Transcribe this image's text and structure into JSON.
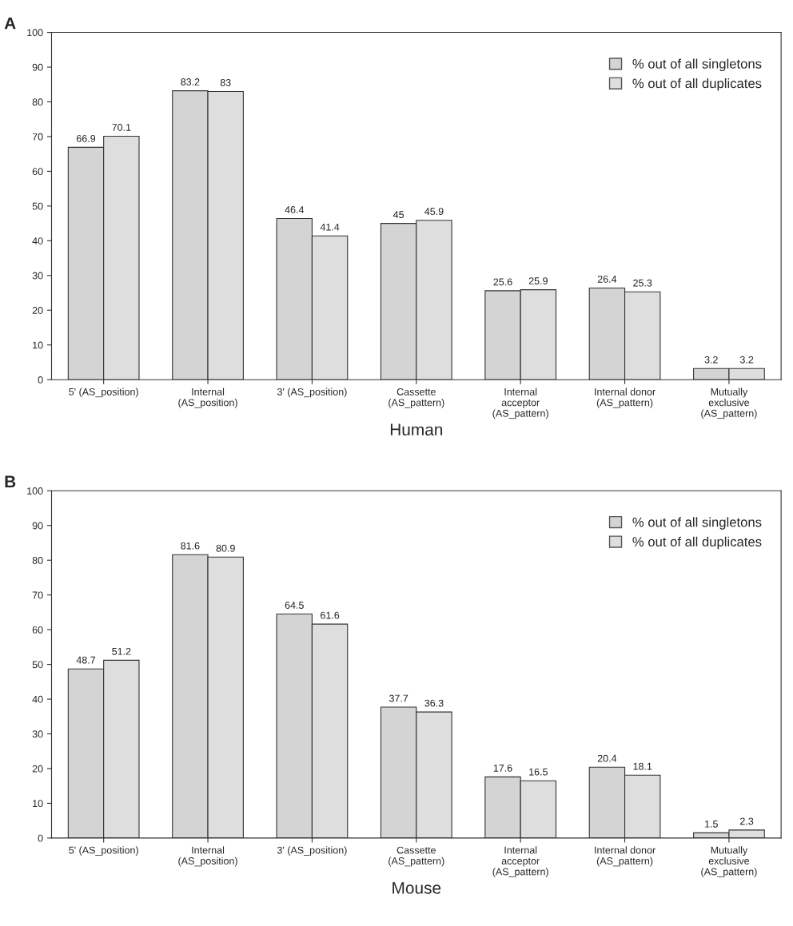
{
  "chart_data": [
    {
      "type": "bar",
      "xlabel": "Human",
      "annotations": [
        "A"
      ],
      "categories": [
        "5' (AS_position)",
        "Internal\n(AS_position)",
        "3' (AS_position)",
        "Cassette\n(AS_pattern)",
        "Internal\nacceptor\n(AS_pattern)",
        "Internal donor\n(AS_pattern)",
        "Mutually\nexclusive\n(AS_pattern)"
      ],
      "series": [
        {
          "name": "% out of all singletons",
          "color": "#d4d4d4",
          "values": [
            66.9,
            83.2,
            46.4,
            45,
            25.6,
            26.4,
            3.2
          ]
        },
        {
          "name": "% out of all duplicates",
          "color": "#dedede",
          "values": [
            70.1,
            83,
            41.4,
            45.9,
            25.9,
            25.3,
            3.2
          ]
        }
      ],
      "ylim": [
        0,
        100
      ],
      "yticks": [
        0,
        10,
        20,
        30,
        40,
        50,
        60,
        70,
        80,
        90,
        100
      ],
      "data_labels": true,
      "legend": "top right",
      "grid": false
    },
    {
      "type": "bar",
      "xlabel": "Mouse",
      "annotations": [
        "B"
      ],
      "categories": [
        "5' (AS_position)",
        "Internal\n(AS_position)",
        "3' (AS_position)",
        "Cassette\n(AS_pattern)",
        "Internal\nacceptor\n(AS_pattern)",
        "Internal donor\n(AS_pattern)",
        "Mutually\nexclusive\n(AS_pattern)"
      ],
      "series": [
        {
          "name": "% out of all singletons",
          "color": "#d4d4d4",
          "values": [
            48.7,
            81.6,
            64.5,
            37.7,
            17.6,
            20.4,
            1.5
          ]
        },
        {
          "name": "% out of all duplicates",
          "color": "#dedede",
          "values": [
            51.2,
            80.9,
            61.6,
            36.3,
            16.5,
            18.1,
            2.3
          ]
        }
      ],
      "ylim": [
        0,
        100
      ],
      "yticks": [
        0,
        10,
        20,
        30,
        40,
        50,
        60,
        70,
        80,
        90,
        100
      ],
      "data_labels": true,
      "legend": "top right",
      "grid": false
    }
  ]
}
